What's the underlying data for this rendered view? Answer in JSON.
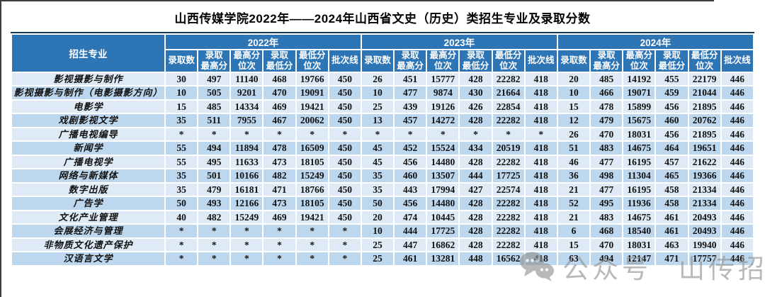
{
  "page": {
    "title": "山西传媒学院2022年——2024年山西省文史（历史）类招生专业及录取分数"
  },
  "colors": {
    "header_bg": "#2E75B6",
    "row_light": "#DEEBF7",
    "row_dark": "#BDD7EE",
    "table_top_border": "#17365D",
    "header_text": "#FFFFFF",
    "body_text": "#111111",
    "watermark_gray": "#8F8F8F"
  },
  "watermark": {
    "icon": "wechat-icon",
    "label_prefix": "公众号",
    "label_name": "山传招生"
  },
  "table": {
    "major_header": "招生专业",
    "years": [
      "2022年",
      "2023年",
      "2024年"
    ],
    "sub_headers": [
      "录取数",
      "录取\n最高分",
      "最高分\n位次",
      "录取\n最低分",
      "最低分\n位次",
      "批次线"
    ],
    "rows": [
      {
        "major": "影视摄影与制作",
        "c2022": [
          "30",
          "497",
          "11140",
          "468",
          "19766",
          "450"
        ],
        "c2023": [
          "26",
          "451",
          "15777",
          "428",
          "22282",
          "418"
        ],
        "c2024": [
          "20",
          "485",
          "14192",
          "455",
          "22179",
          "446"
        ]
      },
      {
        "major": "影视摄影与制作（电影摄影方向）",
        "c2022": [
          "10",
          "505",
          "9201",
          "470",
          "19091",
          "450"
        ],
        "c2023": [
          "10",
          "477",
          "9874",
          "430",
          "21664",
          "418"
        ],
        "c2024": [
          "10",
          "466",
          "19071",
          "459",
          "21044",
          "446"
        ]
      },
      {
        "major": "电影学",
        "c2022": [
          "15",
          "485",
          "14334",
          "469",
          "19421",
          "450"
        ],
        "c2023": [
          "25",
          "439",
          "19126",
          "426",
          "22854",
          "418"
        ],
        "c2024": [
          "15",
          "478",
          "15899",
          "456",
          "21895",
          "446"
        ]
      },
      {
        "major": "戏剧影视文学",
        "c2022": [
          "35",
          "511",
          "7955",
          "467",
          "20062",
          "450"
        ],
        "c2023": [
          "13",
          "457",
          "14272",
          "428",
          "22282",
          "418"
        ],
        "c2024": [
          "12",
          "479",
          "15675",
          "460",
          "20762",
          "446"
        ]
      },
      {
        "major": "广播电视编导",
        "c2022": [
          "*",
          "*",
          "*",
          "*",
          "*",
          "*"
        ],
        "c2023": [
          "*",
          "*",
          "*",
          "*",
          "*",
          "*"
        ],
        "c2024": [
          "26",
          "470",
          "18031",
          "456",
          "21895",
          "446"
        ]
      },
      {
        "major": "新闻学",
        "c2022": [
          "55",
          "494",
          "11894",
          "478",
          "16509",
          "450"
        ],
        "c2023": [
          "45",
          "452",
          "15524",
          "434",
          "20519",
          "418"
        ],
        "c2024": [
          "51",
          "483",
          "14675",
          "464",
          "19651",
          "446"
        ]
      },
      {
        "major": "广播电视学",
        "c2022": [
          "55",
          "495",
          "11633",
          "473",
          "18105",
          "450"
        ],
        "c2023": [
          "45",
          "456",
          "14480",
          "428",
          "22282",
          "418"
        ],
        "c2024": [
          "46",
          "477",
          "16195",
          "457",
          "21622",
          "446"
        ]
      },
      {
        "major": "网络与新媒体",
        "c2022": [
          "35",
          "501",
          "10166",
          "482",
          "15249",
          "450"
        ],
        "c2023": [
          "35",
          "460",
          "13507",
          "444",
          "17725",
          "418"
        ],
        "c2024": [
          "36",
          "498",
          "11304",
          "465",
          "19366",
          "446"
        ]
      },
      {
        "major": "数字出版",
        "c2022": [
          "35",
          "479",
          "16181",
          "471",
          "18766",
          "450"
        ],
        "c2023": [
          "35",
          "443",
          "17994",
          "427",
          "22574",
          "418"
        ],
        "c2024": [
          "21",
          "477",
          "16195",
          "458",
          "21334",
          "446"
        ]
      },
      {
        "major": "广告学",
        "c2022": [
          "50",
          "493",
          "12166",
          "473",
          "18105",
          "450"
        ],
        "c2023": [
          "50",
          "456",
          "14480",
          "428",
          "22282",
          "418"
        ],
        "c2024": [
          "52",
          "495",
          "11936",
          "458",
          "21334",
          "446"
        ]
      },
      {
        "major": "文化产业管理",
        "c2022": [
          "40",
          "482",
          "15249",
          "469",
          "19421",
          "450"
        ],
        "c2023": [
          "20",
          "474",
          "10445",
          "428",
          "22282",
          "418"
        ],
        "c2024": [
          "21",
          "483",
          "14675",
          "461",
          "20493",
          "446"
        ]
      },
      {
        "major": "会展经济与管理",
        "c2022": [
          "*",
          "*",
          "*",
          "*",
          "*",
          "*"
        ],
        "c2023": [
          "10",
          "444",
          "17725",
          "428",
          "22282",
          "418"
        ],
        "c2024": [
          "6",
          "468",
          "18540",
          "461",
          "20493",
          "446"
        ]
      },
      {
        "major": "非物质文化遗产保护",
        "c2022": [
          "*",
          "*",
          "*",
          "*",
          "*",
          "*"
        ],
        "c2023": [
          "25",
          "447",
          "16862",
          "428",
          "22282",
          "418"
        ],
        "c2024": [
          "15",
          "470",
          "18031",
          "463",
          "19940",
          "446"
        ]
      },
      {
        "major": "汉语言文学",
        "c2022": [
          "*",
          "*",
          "*",
          "*",
          "*",
          "*"
        ],
        "c2023": [
          "25",
          "461",
          "13281",
          "448",
          "16562",
          "418"
        ],
        "c2024": [
          "63",
          "494",
          "12147",
          "471",
          "17757",
          "446"
        ]
      }
    ]
  }
}
